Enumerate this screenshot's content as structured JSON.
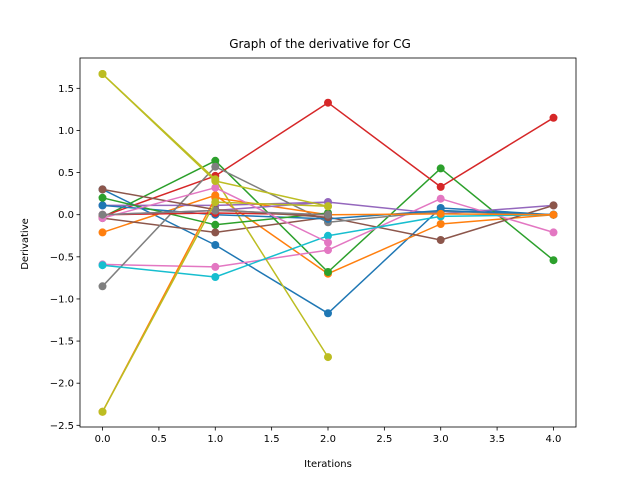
{
  "chart_data": {
    "type": "line",
    "title": "Graph of the derivative for CG",
    "xlabel": "Iterations",
    "ylabel": "Derivative",
    "xlim": [
      -0.2,
      4.2
    ],
    "ylim": [
      -2.52,
      1.86
    ],
    "xticks": [
      0.0,
      0.5,
      1.0,
      1.5,
      2.0,
      2.5,
      3.0,
      3.5,
      4.0
    ],
    "xtick_labels": [
      "0.0",
      "0.5",
      "1.0",
      "1.5",
      "2.0",
      "2.5",
      "3.0",
      "3.5",
      "4.0"
    ],
    "yticks": [
      -2.5,
      -2.0,
      -1.5,
      -1.0,
      -0.5,
      0.0,
      0.5,
      1.0,
      1.5
    ],
    "ytick_labels": [
      "−2.5",
      "−2.0",
      "−1.5",
      "−1.0",
      "−0.5",
      "0.0",
      "0.5",
      "1.0",
      "1.5"
    ],
    "grid": false,
    "legend": false,
    "markers": true,
    "series": [
      {
        "color": "#1f77b4",
        "x": [
          0,
          1,
          2,
          3,
          4
        ],
        "values": [
          0.3,
          -0.36,
          -1.17,
          0.08,
          0.0
        ]
      },
      {
        "color": "#ff7f0e",
        "x": [
          0,
          1,
          2,
          3,
          4
        ],
        "values": [
          -0.21,
          0.23,
          -0.7,
          -0.11,
          0.0
        ]
      },
      {
        "color": "#2ca02c",
        "x": [
          0,
          1,
          2,
          3,
          4
        ],
        "values": [
          -0.03,
          0.64,
          -0.68,
          0.55,
          -0.54
        ]
      },
      {
        "color": "#d62728",
        "x": [
          0,
          1,
          2,
          3,
          4
        ],
        "values": [
          -0.02,
          0.46,
          1.33,
          0.33,
          1.15
        ]
      },
      {
        "color": "#9467bd",
        "x": [
          0,
          1,
          2,
          3,
          4
        ],
        "values": [
          0.11,
          0.11,
          0.15,
          0.01,
          0.11
        ]
      },
      {
        "color": "#8c564b",
        "x": [
          0,
          1,
          2,
          3,
          4
        ],
        "values": [
          -0.04,
          -0.21,
          -0.03,
          -0.3,
          0.11
        ]
      },
      {
        "color": "#e377c2",
        "x": [
          0,
          1,
          2,
          3,
          4
        ],
        "values": [
          -0.59,
          -0.62,
          -0.42,
          0.19,
          -0.21
        ]
      },
      {
        "color": "#7f7f7f",
        "x": [
          0,
          1,
          2,
          3,
          4
        ],
        "values": [
          -0.85,
          0.57,
          -0.09,
          0.04,
          0.0
        ]
      },
      {
        "color": "#bcbd22",
        "x": [
          0,
          1,
          2
        ],
        "values": [
          1.67,
          0.42,
          -1.69
        ]
      },
      {
        "color": "#17becf",
        "x": [
          0,
          1,
          2,
          3,
          4
        ],
        "values": [
          -0.6,
          -0.74,
          -0.25,
          -0.02,
          0.0
        ]
      },
      {
        "color": "#1f77b4",
        "x": [
          0,
          1,
          2,
          3,
          4
        ],
        "values": [
          0.11,
          0.0,
          -0.05,
          0.05,
          0.0
        ]
      },
      {
        "color": "#ff7f0e",
        "x": [
          0,
          1,
          2,
          3,
          4
        ],
        "values": [
          -2.34,
          0.2,
          0.0,
          0.01,
          0.0
        ]
      },
      {
        "color": "#2ca02c",
        "x": [
          0,
          1,
          2
        ],
        "values": [
          0.2,
          -0.12,
          0.02
        ]
      },
      {
        "color": "#d62728",
        "x": [
          0,
          1,
          2
        ],
        "values": [
          0.0,
          0.02,
          0.0
        ]
      },
      {
        "color": "#9467bd",
        "x": [
          0,
          1,
          2
        ],
        "values": [
          0.0,
          0.05,
          0.15
        ]
      },
      {
        "color": "#8c564b",
        "x": [
          0,
          1,
          2
        ],
        "values": [
          0.3,
          0.06,
          -0.03
        ]
      },
      {
        "color": "#e377c2",
        "x": [
          0,
          1,
          2
        ],
        "values": [
          -0.04,
          0.32,
          -0.33
        ]
      },
      {
        "color": "#7f7f7f",
        "x": [
          0,
          1,
          2
        ],
        "values": [
          0.0,
          0.05,
          0.0
        ]
      },
      {
        "color": "#bcbd22",
        "x": [
          0,
          1,
          2
        ],
        "values": [
          -2.34,
          0.15,
          0.1
        ]
      },
      {
        "color": "#bcbd22",
        "x": [
          0,
          1,
          2
        ],
        "values": [
          1.67,
          0.4,
          0.1
        ]
      }
    ]
  }
}
